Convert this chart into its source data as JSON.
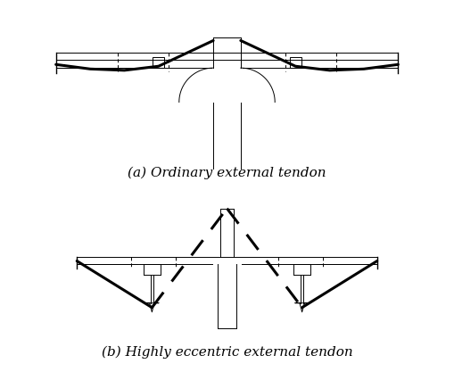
{
  "title_a": "(a) Ordinary external tendon",
  "title_b": "(b) Highly eccentric external tendon",
  "bg_color": "#ffffff",
  "line_color": "#000000",
  "lw_thin": 0.7,
  "lw_med": 1.0,
  "lw_thick": 2.2,
  "font_size": 11
}
